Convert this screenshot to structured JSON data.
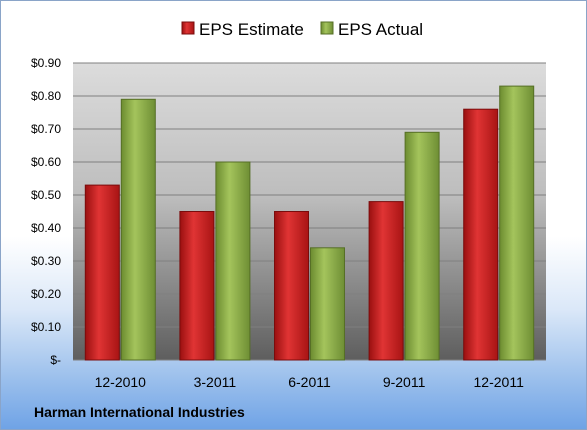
{
  "chart_data": {
    "type": "bar",
    "categories": [
      "12-2010",
      "3-2011",
      "6-2011",
      "9-2011",
      "12-2011"
    ],
    "series": [
      {
        "name": "EPS Estimate",
        "values": [
          0.53,
          0.45,
          0.45,
          0.48,
          0.76
        ],
        "color": "#cc1f1f"
      },
      {
        "name": "EPS Actual",
        "values": [
          0.79,
          0.6,
          0.34,
          0.69,
          0.83
        ],
        "color": "#8fb14b"
      }
    ],
    "y_ticks": [
      {
        "value": 0.0,
        "label": "$-"
      },
      {
        "value": 0.1,
        "label": "$0.10"
      },
      {
        "value": 0.2,
        "label": "$0.20"
      },
      {
        "value": 0.3,
        "label": "$0.30"
      },
      {
        "value": 0.4,
        "label": "$0.40"
      },
      {
        "value": 0.5,
        "label": "$0.50"
      },
      {
        "value": 0.6,
        "label": "$0.60"
      },
      {
        "value": 0.7,
        "label": "$0.70"
      },
      {
        "value": 0.8,
        "label": "$0.80"
      },
      {
        "value": 0.9,
        "label": "$0.90"
      }
    ],
    "ylim": [
      0,
      0.9
    ],
    "grid": true,
    "legend": "top",
    "footer": "Harman International Industries"
  }
}
